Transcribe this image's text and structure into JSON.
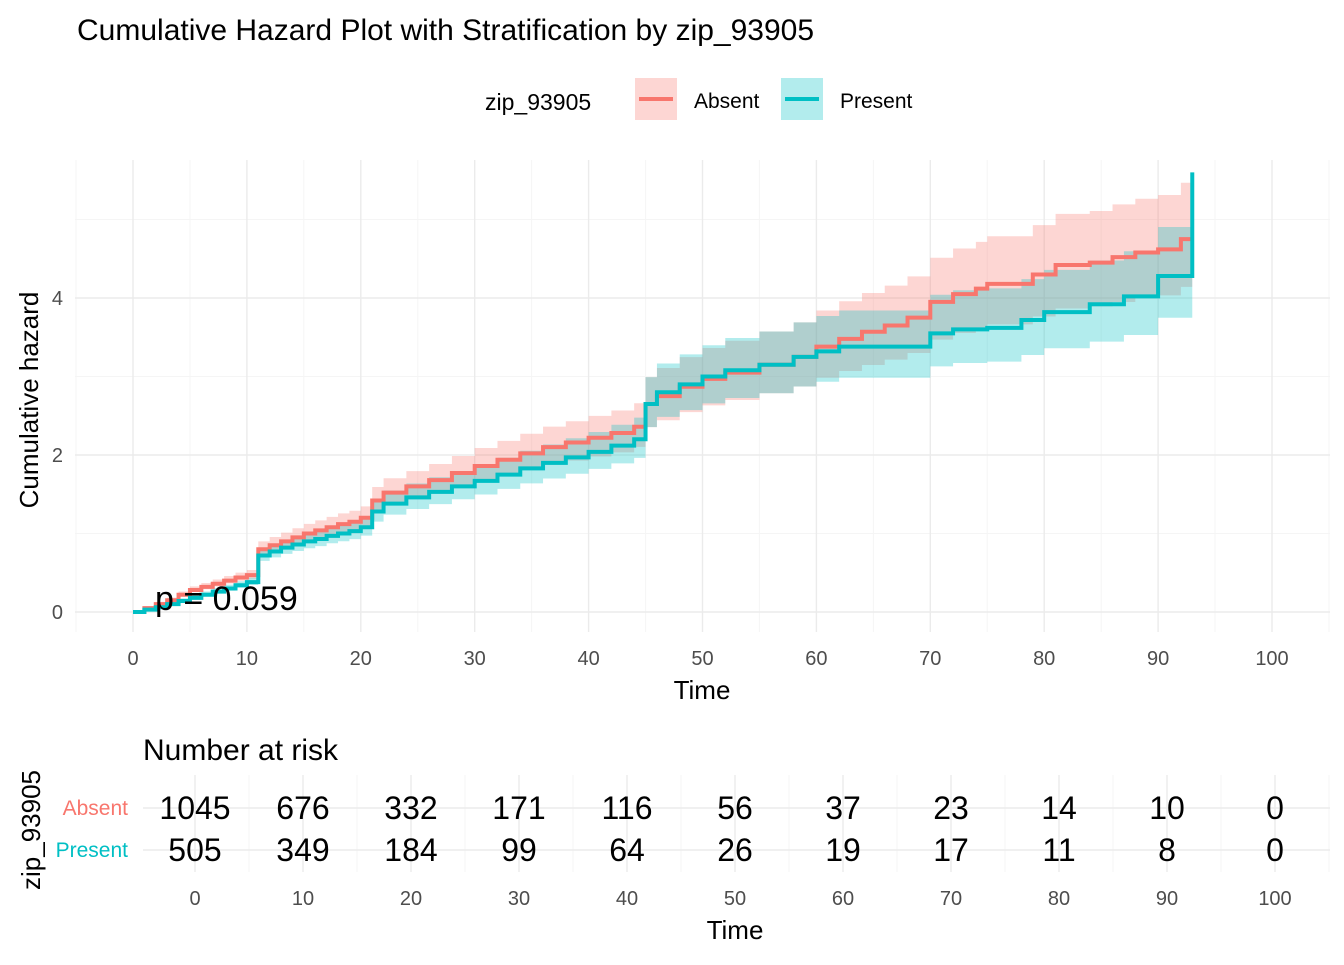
{
  "chart_data": [
    {
      "type": "line",
      "subtype": "step",
      "title": "Cumulative Hazard Plot with Stratification by zip_93905",
      "xlabel": "Time",
      "ylabel": "Cumulative hazard",
      "xlim": [
        0,
        100
      ],
      "ylim": [
        0,
        5.6
      ],
      "x_ticks": [
        0,
        10,
        20,
        30,
        40,
        50,
        60,
        70,
        80,
        90,
        100
      ],
      "y_ticks": [
        0,
        2,
        4
      ],
      "grid": true,
      "legend": {
        "title": "zip_93905",
        "position": "top"
      },
      "annotation": "p = 0.059",
      "series": [
        {
          "name": "Absent",
          "color": "#f8766d",
          "x": [
            0,
            1,
            2,
            3,
            4,
            5,
            6,
            7,
            8,
            9,
            10,
            11,
            12,
            13,
            14,
            15,
            16,
            17,
            18,
            19,
            20,
            21,
            22,
            24,
            26,
            28,
            30,
            32,
            34,
            36,
            38,
            40,
            42,
            44,
            45,
            46,
            48,
            50,
            52,
            55,
            58,
            60,
            62,
            64,
            66,
            68,
            70,
            72,
            74,
            75,
            77,
            79,
            81,
            84,
            86,
            88,
            90,
            92,
            93
          ],
          "y": [
            0,
            0.05,
            0.1,
            0.15,
            0.22,
            0.28,
            0.32,
            0.36,
            0.4,
            0.44,
            0.47,
            0.8,
            0.85,
            0.9,
            0.95,
            1.0,
            1.04,
            1.08,
            1.12,
            1.15,
            1.2,
            1.42,
            1.52,
            1.6,
            1.68,
            1.77,
            1.86,
            1.94,
            2.02,
            2.1,
            2.16,
            2.22,
            2.28,
            2.36,
            2.65,
            2.75,
            2.87,
            2.97,
            3.05,
            3.15,
            3.25,
            3.38,
            3.48,
            3.57,
            3.65,
            3.75,
            3.95,
            4.05,
            4.12,
            4.18,
            4.18,
            4.3,
            4.42,
            4.45,
            4.52,
            4.58,
            4.62,
            4.75,
            4.75
          ]
        },
        {
          "name": "Present",
          "color": "#00bfc4",
          "x": [
            0,
            1,
            2,
            3,
            4,
            5,
            6,
            7,
            8,
            9,
            10,
            11,
            12,
            13,
            14,
            15,
            16,
            17,
            18,
            19,
            20,
            21,
            22,
            24,
            26,
            28,
            30,
            32,
            34,
            36,
            38,
            40,
            42,
            44,
            45,
            46,
            48,
            50,
            52,
            55,
            58,
            60,
            62,
            64,
            66,
            70,
            72,
            75,
            78,
            80,
            84,
            87,
            90,
            93
          ],
          "y": [
            0,
            0.03,
            0.06,
            0.1,
            0.14,
            0.18,
            0.22,
            0.26,
            0.3,
            0.34,
            0.38,
            0.72,
            0.77,
            0.82,
            0.86,
            0.9,
            0.93,
            0.97,
            1.0,
            1.03,
            1.08,
            1.28,
            1.38,
            1.46,
            1.53,
            1.6,
            1.67,
            1.75,
            1.83,
            1.9,
            1.97,
            2.04,
            2.12,
            2.2,
            2.65,
            2.8,
            2.9,
            3.0,
            3.08,
            3.15,
            3.25,
            3.32,
            3.38,
            3.38,
            3.38,
            3.55,
            3.6,
            3.62,
            3.72,
            3.82,
            3.92,
            4.02,
            4.28,
            5.6
          ]
        }
      ]
    },
    {
      "type": "table",
      "title": "Number at risk",
      "xlabel": "Time",
      "ylabel": "zip_93905",
      "x_ticks": [
        0,
        10,
        20,
        30,
        40,
        50,
        60,
        70,
        80,
        90,
        100
      ],
      "rows": [
        {
          "name": "Absent",
          "color": "#f8766d",
          "values": [
            1045,
            676,
            332,
            171,
            116,
            56,
            37,
            23,
            14,
            10,
            0
          ]
        },
        {
          "name": "Present",
          "color": "#00bfc4",
          "values": [
            505,
            349,
            184,
            99,
            64,
            26,
            19,
            17,
            11,
            8,
            0
          ]
        }
      ]
    }
  ]
}
